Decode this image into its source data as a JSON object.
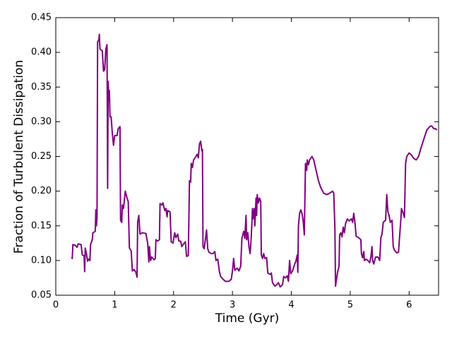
{
  "chart_data": {
    "type": "line",
    "xlabel": "Time (Gyr)",
    "ylabel": "Fraction of Turbulent Dissipation",
    "color": "#800080",
    "xlim": [
      0,
      6.5
    ],
    "xticks": [
      0,
      1,
      2,
      3,
      4,
      5,
      6
    ],
    "ylim": [
      0.05,
      0.45
    ],
    "yticks": [
      0.05,
      {
        "value": 0.1,
        "label": "0.10"
      },
      0.15,
      {
        "value": 0.2,
        "label": "0.20"
      },
      0.25,
      {
        "value": 0.3,
        "label": "0.30"
      },
      0.35,
      {
        "value": 0.4,
        "label": "0.40"
      },
      0.45
    ],
    "x": [
      0.27,
      0.28,
      0.29,
      0.33,
      0.36,
      0.38,
      0.43,
      0.45,
      0.48,
      0.49,
      0.5,
      0.52,
      0.54,
      0.56,
      0.58,
      0.59,
      0.62,
      0.63,
      0.67,
      0.68,
      0.69,
      0.7,
      0.71,
      0.73,
      0.74,
      0.75,
      0.79,
      0.81,
      0.83,
      0.85,
      0.87,
      0.88,
      0.89,
      0.9,
      0.91,
      0.92,
      0.94,
      0.96,
      0.98,
      1.0,
      1.04,
      1.06,
      1.09,
      1.1,
      1.12,
      1.13,
      1.15,
      1.18,
      1.21,
      1.23,
      1.25,
      1.28,
      1.3,
      1.33,
      1.36,
      1.38,
      1.39,
      1.41,
      1.43,
      1.47,
      1.53,
      1.56,
      1.58,
      1.59,
      1.61,
      1.63,
      1.67,
      1.69,
      1.7,
      1.73,
      1.76,
      1.77,
      1.8,
      1.82,
      1.85,
      1.87,
      1.89,
      1.9,
      1.94,
      1.96,
      1.99,
      2.02,
      2.04,
      2.07,
      2.09,
      2.12,
      2.14,
      2.17,
      2.2,
      2.22,
      2.25,
      2.27,
      2.29,
      2.3,
      2.32,
      2.34,
      2.38,
      2.4,
      2.42,
      2.44,
      2.46,
      2.48,
      2.49,
      2.5,
      2.52,
      2.54,
      2.56,
      2.58,
      2.6,
      2.64,
      2.67,
      2.7,
      2.72,
      2.75,
      2.78,
      2.8,
      2.84,
      2.88,
      2.94,
      2.98,
      3.0,
      3.02,
      3.04,
      3.08,
      3.11,
      3.14,
      3.16,
      3.19,
      3.21,
      3.23,
      3.24,
      3.26,
      3.28,
      3.3,
      3.32,
      3.34,
      3.35,
      3.37,
      3.38,
      3.4,
      3.41,
      3.42,
      3.44,
      3.46,
      3.48,
      3.49,
      3.51,
      3.53,
      3.55,
      3.58,
      3.6,
      3.64,
      3.66,
      3.68,
      3.72,
      3.75,
      3.78,
      3.81,
      3.85,
      3.87,
      3.9,
      3.93,
      3.95,
      3.97,
      3.99,
      4.02,
      4.05,
      4.08,
      4.1,
      4.11,
      4.12,
      4.14,
      4.16,
      4.18,
      4.2,
      4.22,
      4.24,
      4.26,
      4.27,
      4.29,
      4.31,
      4.35,
      4.38,
      4.42,
      4.46,
      4.5,
      4.55,
      4.6,
      4.65,
      4.7,
      4.72,
      4.74,
      4.75,
      4.77,
      4.79,
      4.81,
      4.82,
      4.84,
      4.86,
      4.88,
      4.9,
      4.92,
      4.95,
      4.98,
      5.02,
      5.04,
      5.06,
      5.08,
      5.1,
      5.14,
      5.18,
      5.19,
      5.21,
      5.23,
      5.24,
      5.27,
      5.3,
      5.33,
      5.35,
      5.37,
      5.38,
      5.4,
      5.43,
      5.47,
      5.5,
      5.52,
      5.54,
      5.56,
      5.6,
      5.62,
      5.64,
      5.66,
      5.68,
      5.71,
      5.73,
      5.75,
      5.79,
      5.82,
      5.83,
      5.86,
      5.87,
      5.9,
      5.92,
      5.94,
      5.96,
      6.0,
      6.04,
      6.08,
      6.12,
      6.16,
      6.2,
      6.25,
      6.3,
      6.35,
      6.38,
      6.42,
      6.45,
      6.47
    ],
    "values": [
      0.105,
      0.103,
      0.123,
      0.122,
      0.119,
      0.124,
      0.123,
      0.108,
      0.107,
      0.084,
      0.118,
      0.11,
      0.099,
      0.102,
      0.1,
      0.123,
      0.13,
      0.14,
      0.142,
      0.173,
      0.15,
      0.162,
      0.415,
      0.418,
      0.426,
      0.405,
      0.402,
      0.373,
      0.375,
      0.405,
      0.411,
      0.204,
      0.358,
      0.33,
      0.345,
      0.307,
      0.307,
      0.283,
      0.266,
      0.28,
      0.28,
      0.29,
      0.293,
      0.158,
      0.155,
      0.18,
      0.175,
      0.2,
      0.19,
      0.185,
      0.118,
      0.114,
      0.085,
      0.087,
      0.083,
      0.076,
      0.155,
      0.165,
      0.138,
      0.14,
      0.139,
      0.125,
      0.098,
      0.12,
      0.1,
      0.105,
      0.101,
      0.103,
      0.13,
      0.128,
      0.13,
      0.182,
      0.18,
      0.183,
      0.172,
      0.175,
      0.163,
      0.172,
      0.17,
      0.127,
      0.125,
      0.14,
      0.133,
      0.138,
      0.128,
      0.128,
      0.12,
      0.124,
      0.127,
      0.106,
      0.107,
      0.215,
      0.213,
      0.24,
      0.234,
      0.245,
      0.25,
      0.253,
      0.248,
      0.268,
      0.272,
      0.258,
      0.26,
      0.12,
      0.117,
      0.13,
      0.144,
      0.117,
      0.112,
      0.11,
      0.11,
      0.113,
      0.1,
      0.102,
      0.083,
      0.077,
      0.073,
      0.07,
      0.07,
      0.073,
      0.085,
      0.103,
      0.086,
      0.089,
      0.085,
      0.092,
      0.132,
      0.142,
      0.132,
      0.165,
      0.13,
      0.14,
      0.12,
      0.11,
      0.135,
      0.175,
      0.16,
      0.175,
      0.15,
      0.19,
      0.165,
      0.195,
      0.183,
      0.19,
      0.185,
      0.108,
      0.103,
      0.11,
      0.103,
      0.104,
      0.082,
      0.08,
      0.082,
      0.068,
      0.063,
      0.065,
      0.068,
      0.062,
      0.065,
      0.077,
      0.075,
      0.078,
      0.07,
      0.1,
      0.081,
      0.085,
      0.093,
      0.1,
      0.108,
      0.083,
      0.15,
      0.168,
      0.173,
      0.168,
      0.158,
      0.137,
      0.24,
      0.23,
      0.245,
      0.238,
      0.245,
      0.25,
      0.245,
      0.23,
      0.215,
      0.205,
      0.197,
      0.195,
      0.197,
      0.2,
      0.197,
      0.145,
      0.063,
      0.075,
      0.085,
      0.092,
      0.137,
      0.14,
      0.134,
      0.148,
      0.14,
      0.153,
      0.16,
      0.157,
      0.16,
      0.155,
      0.168,
      0.155,
      0.135,
      0.133,
      0.13,
      0.11,
      0.104,
      0.113,
      0.1,
      0.102,
      0.1,
      0.097,
      0.105,
      0.12,
      0.1,
      0.095,
      0.105,
      0.105,
      0.1,
      0.133,
      0.138,
      0.155,
      0.158,
      0.195,
      0.17,
      0.165,
      0.155,
      0.158,
      0.12,
      0.115,
      0.111,
      0.112,
      0.125,
      0.16,
      0.175,
      0.168,
      0.162,
      0.24,
      0.25,
      0.255,
      0.252,
      0.247,
      0.245,
      0.25,
      0.262,
      0.275,
      0.288,
      0.293,
      0.294,
      0.29,
      0.29,
      0.288
    ]
  }
}
